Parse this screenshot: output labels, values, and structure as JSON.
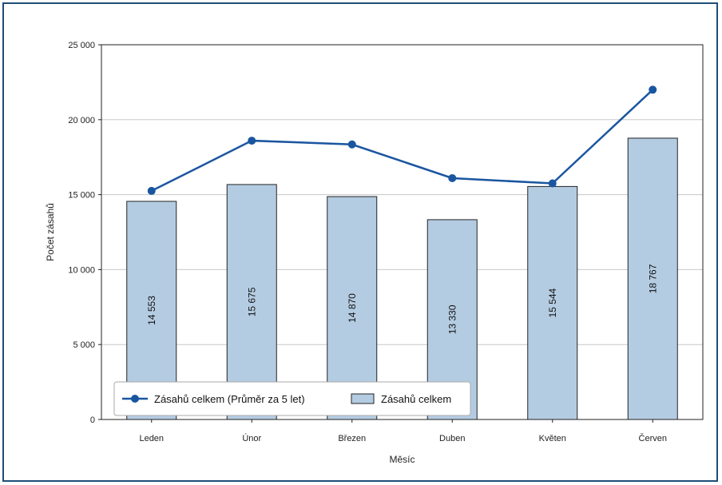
{
  "chart_data": {
    "type": "bar",
    "title": "",
    "xlabel": "Měsíc",
    "ylabel": "Počet zásahů",
    "categories": [
      "Leden",
      "Únor",
      "Březen",
      "Duben",
      "Květen",
      "Červen"
    ],
    "ylim": [
      0,
      25000
    ],
    "yticks": [
      0,
      5000,
      10000,
      15000,
      20000,
      25000
    ],
    "ytick_labels": [
      "0",
      "5 000",
      "10 000",
      "15 000",
      "20 000",
      "25 000"
    ],
    "grid": true,
    "legend_position": "bottom-left",
    "series": [
      {
        "name": "Zásahů celkem",
        "kind": "bar",
        "color": "#b4cce2",
        "values": [
          14553,
          15675,
          14870,
          13330,
          15544,
          18767
        ],
        "value_labels": [
          "14 553",
          "15 675",
          "14 870",
          "13 330",
          "15 544",
          "18 767"
        ]
      },
      {
        "name": "Zásahů celkem (Průměr za 5 let)",
        "kind": "line",
        "color": "#1a56a0",
        "values": [
          15250,
          18600,
          18350,
          16100,
          15750,
          22000
        ]
      }
    ]
  },
  "colors": {
    "frame": "#1f4e79",
    "grid": "#c8c8c8",
    "bar_edge": "#222222"
  }
}
